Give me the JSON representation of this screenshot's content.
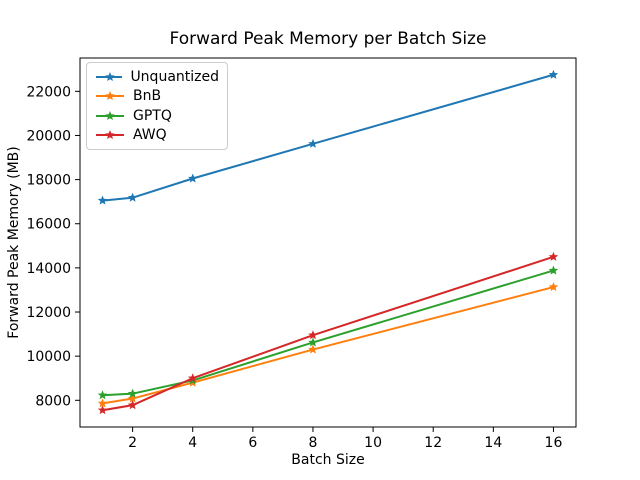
{
  "figure": {
    "title": "Forward Peak Memory per Batch Size",
    "xlabel": "Batch Size",
    "ylabel": "Forward Peak Memory (MB)"
  },
  "chart_data": {
    "type": "line",
    "title": "Forward Peak Memory per Batch Size",
    "xlabel": "Batch Size",
    "ylabel": "Forward Peak Memory (MB)",
    "x": [
      1,
      2,
      4,
      8,
      16
    ],
    "series": [
      {
        "name": "Unquantized",
        "color": "#1f77b4",
        "values": [
          17050,
          17180,
          18050,
          19620,
          22750
        ]
      },
      {
        "name": "BnB",
        "color": "#ff7f0e",
        "values": [
          7860,
          8080,
          8800,
          10300,
          13130
        ]
      },
      {
        "name": "GPTQ",
        "color": "#2ca02c",
        "values": [
          8230,
          8300,
          8900,
          10620,
          13880
        ]
      },
      {
        "name": "AWQ",
        "color": "#d62728",
        "values": [
          7550,
          7780,
          9000,
          10950,
          14500
        ]
      }
    ],
    "marker": "star",
    "xticks": [
      2,
      4,
      6,
      8,
      10,
      12,
      14,
      16
    ],
    "yticks": [
      8000,
      10000,
      12000,
      14000,
      16000,
      18000,
      20000,
      22000
    ],
    "xlim": [
      0.25,
      16.75
    ],
    "ylim": [
      6790,
      23510
    ],
    "legend_position": "upper left",
    "grid": false,
    "spine_color": "#000000"
  }
}
